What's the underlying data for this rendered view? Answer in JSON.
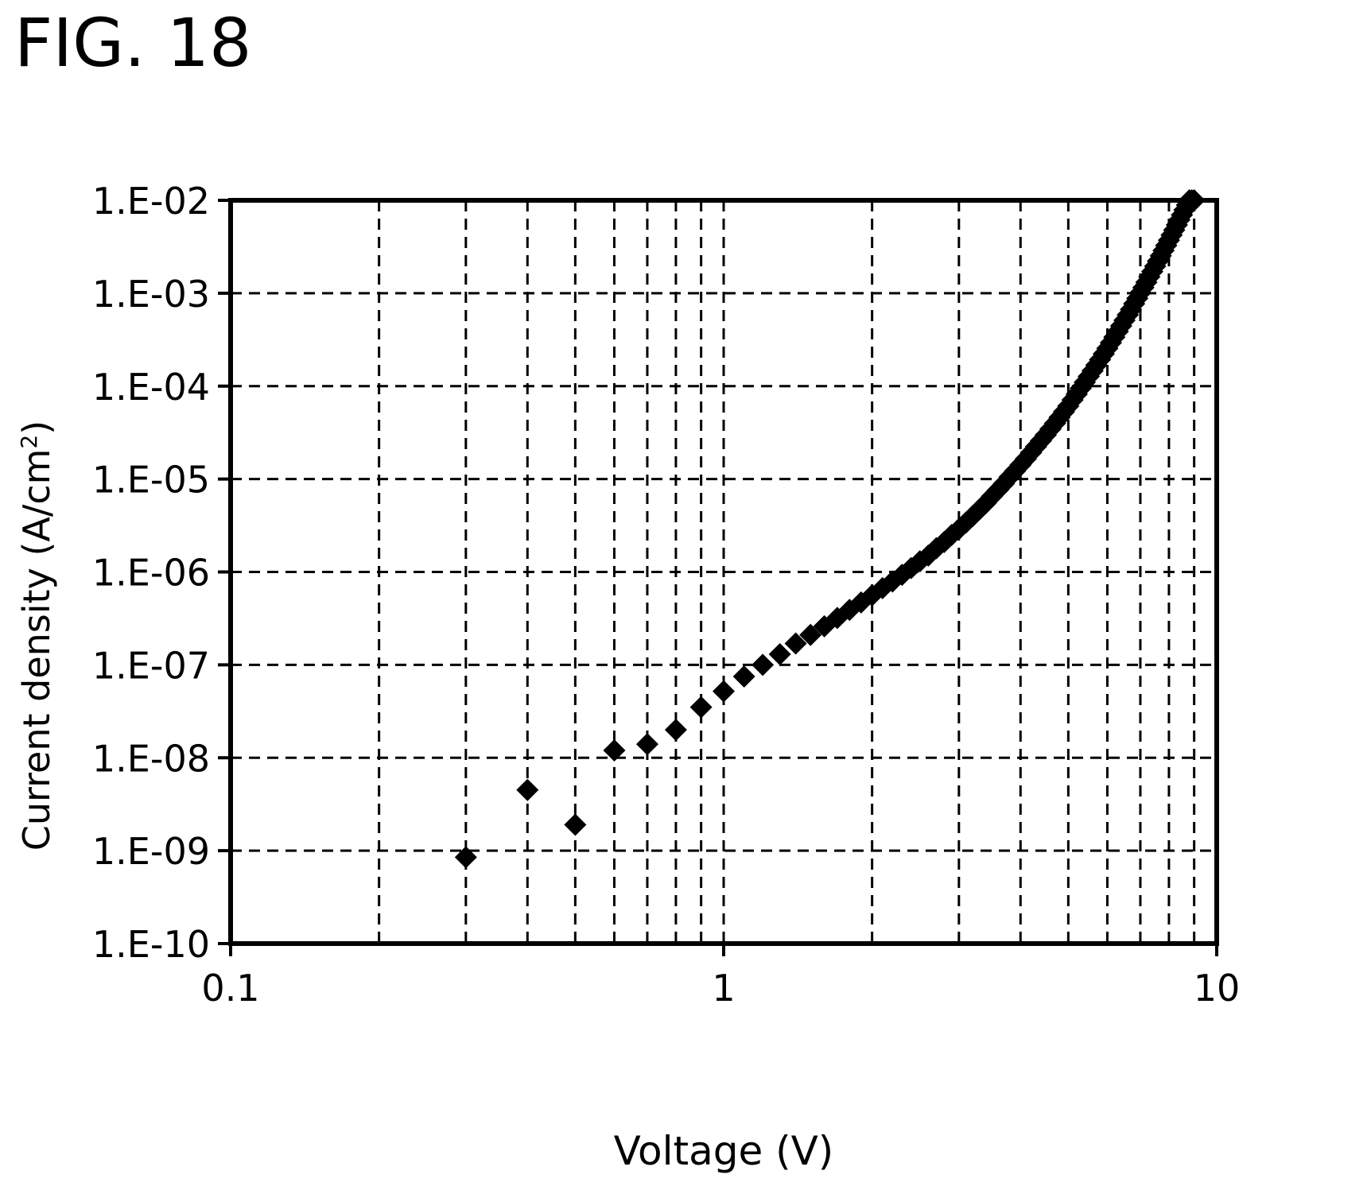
{
  "figure_label": "FIG. 18",
  "chart_data": {
    "type": "scatter",
    "xlabel": "Voltage (V)",
    "ylabel_main": "Current density (A/cm",
    "ylabel_sup": "2",
    "ylabel_close": ")",
    "x_scale": "log",
    "y_scale": "log",
    "xlim": [
      0.1,
      10
    ],
    "ylim": [
      1e-10,
      0.01
    ],
    "x_tick_labels": [
      "0.1",
      "1",
      "10"
    ],
    "y_tick_labels": [
      "1.E-10",
      "1.E-09",
      "1.E-08",
      "1.E-07",
      "1.E-06",
      "1.E-05",
      "1.E-04",
      "1.E-03",
      "1.E-02"
    ],
    "grid": true,
    "grid_style": "dashed",
    "marker": "diamond",
    "marker_color": "#000000",
    "series": [
      {
        "x": [
          0.3,
          0.4,
          0.5,
          0.6,
          0.7,
          0.8,
          0.9,
          1.0,
          1.1,
          1.2,
          1.3,
          1.4,
          1.5,
          1.6,
          1.7,
          1.8,
          1.9,
          2.0,
          2.1,
          2.2,
          2.3,
          2.4,
          2.5,
          2.6,
          2.7,
          2.8,
          2.9,
          3.0,
          3.1,
          3.2,
          3.3,
          3.4,
          3.5,
          3.6,
          3.7,
          3.8,
          3.9,
          4.0,
          4.1,
          4.2,
          4.3,
          4.4,
          4.5,
          4.6,
          4.7,
          4.8,
          4.9,
          5.0,
          5.1,
          5.2,
          5.3,
          5.4,
          5.5,
          5.6,
          5.7,
          5.8,
          5.9,
          6.0,
          6.1,
          6.2,
          6.3,
          6.4,
          6.5,
          6.6,
          6.7,
          6.8,
          6.9,
          7.0,
          7.1,
          7.2,
          7.3,
          7.4,
          7.5,
          7.6,
          7.7,
          7.8,
          7.9,
          8.0,
          8.1,
          8.2,
          8.3,
          8.4,
          8.5,
          8.6,
          8.7,
          8.8,
          8.9,
          9.0
        ],
        "y": [
          8.5e-10,
          4.5e-09,
          1.9e-09,
          1.2e-08,
          1.4e-08,
          2e-08,
          3.5e-08,
          5.2e-08,
          7.5e-08,
          1e-07,
          1.3e-07,
          1.7e-07,
          2.1e-07,
          2.6e-07,
          3.2e-07,
          3.9e-07,
          4.7e-07,
          5.6e-07,
          6.7e-07,
          7.9e-07,
          9.3e-07,
          1.1e-06,
          1.3e-06,
          1.5e-06,
          1.8e-06,
          2.1e-06,
          2.5e-06,
          2.9e-06,
          3.4e-06,
          4e-06,
          4.7e-06,
          5.5e-06,
          6.5e-06,
          7.6e-06,
          8.9e-06,
          1.05e-05,
          1.22e-05,
          1.42e-05,
          1.65e-05,
          1.92e-05,
          2.23e-05,
          2.58e-05,
          2.98e-05,
          3.45e-05,
          3.98e-05,
          4.6e-05,
          5.3e-05,
          6.1e-05,
          7.1e-05,
          8.2e-05,
          9.5e-05,
          0.00011,
          0.000127,
          0.000146,
          0.000168,
          0.000193,
          0.000222,
          0.000255,
          0.000293,
          0.000337,
          0.000387,
          0.000445,
          0.00051,
          0.000585,
          0.00067,
          0.00077,
          0.00088,
          0.00101,
          0.00115,
          0.00131,
          0.0015,
          0.00171,
          0.00195,
          0.00222,
          0.00253,
          0.00288,
          0.00327,
          0.00372,
          0.00422,
          0.00479,
          0.00543,
          0.00615,
          0.00696,
          0.00787,
          0.0089,
          0.01,
          0.01,
          0.01
        ]
      }
    ]
  }
}
